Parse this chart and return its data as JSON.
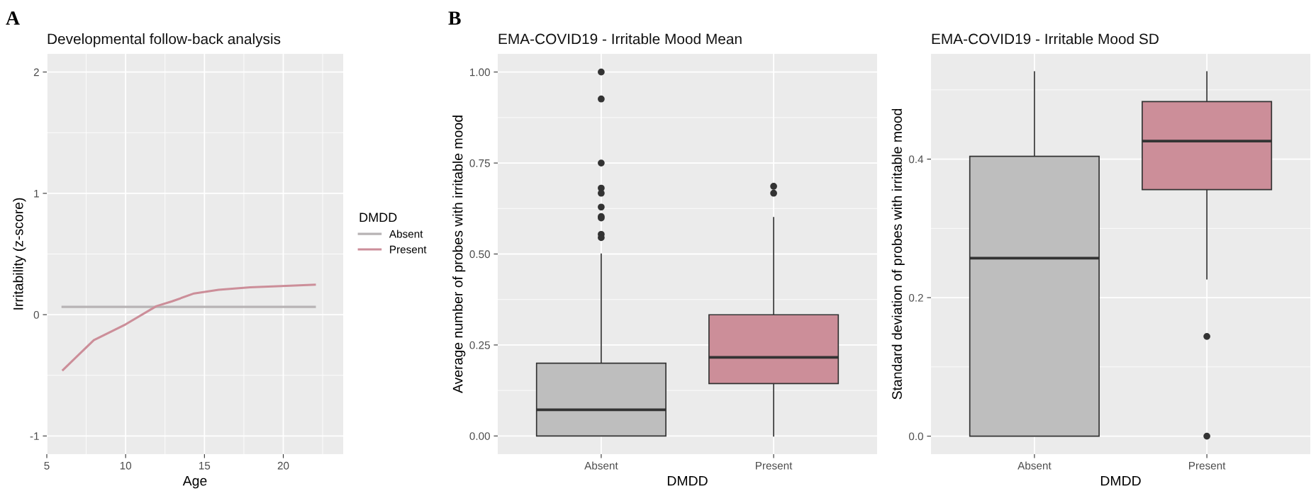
{
  "chart_data": [
    {
      "type": "line",
      "title": "Developmental follow-back analysis",
      "xlabel": "Age",
      "ylabel": "Irritability (z-score)",
      "legend_title": "DMDD",
      "legend": "right",
      "grid": true,
      "marker": "none",
      "line_style": "solid",
      "xlim": [
        5,
        23.8
      ],
      "xticks": [
        5,
        10,
        15,
        20
      ],
      "ylim": [
        -1.15,
        2.15
      ],
      "yticks": [
        -1,
        0,
        1,
        2
      ],
      "annotations": [
        "A"
      ],
      "series": [
        {
          "name": "Absent",
          "color": "#b8b4b5",
          "x": [
            6.0,
            22.0
          ],
          "values": [
            0.064,
            0.064
          ]
        },
        {
          "name": "Present",
          "color": "#cc8e99",
          "x": [
            6.03,
            7.98,
            10.0,
            11.95,
            12.95,
            14.34,
            15.9,
            17.9,
            19.9,
            22.0
          ],
          "values": [
            -0.455,
            -0.21,
            -0.08,
            0.07,
            0.11,
            0.175,
            0.205,
            0.226,
            0.236,
            0.247
          ]
        }
      ]
    },
    {
      "type": "box",
      "title": "EMA-COVID19 - Irritable Mood Mean",
      "xlabel": "DMDD",
      "ylabel": "Average number of probes with irritable mood",
      "grid": true,
      "categories": [
        "Absent",
        "Present"
      ],
      "colors": [
        "#bebebe",
        "#cc8e99"
      ],
      "ylim": [
        -0.05,
        1.05
      ],
      "yticks": [
        {
          "value": 0,
          "label": "0.00"
        },
        0.25,
        {
          "value": 0.5,
          "label": "0.50"
        },
        0.75,
        {
          "value": 1,
          "label": "1.00"
        }
      ],
      "annotations": [
        "B"
      ],
      "boxes": [
        {
          "low": 0,
          "q1": 0,
          "median": 0.072,
          "q3": 0.2,
          "high": 0.5,
          "outliers": [
            1.0,
            0.926,
            0.75,
            0.681,
            0.667,
            0.629,
            0.603,
            0.599,
            0.554,
            0.545
          ]
        },
        {
          "low": 0,
          "q1": 0.144,
          "median": 0.216,
          "q3": 0.333,
          "high": 0.6,
          "outliers": [
            0.686,
            0.667
          ]
        }
      ]
    },
    {
      "type": "box",
      "title": "EMA-COVID19 - Irritable Mood SD",
      "xlabel": "DMDD",
      "ylabel": "Standard deviation of probes with irritable mood",
      "grid": true,
      "categories": [
        "Absent",
        "Present"
      ],
      "colors": [
        "#bebebe",
        "#cc8e99"
      ],
      "ylim": [
        -0.026,
        0.552
      ],
      "yticks": [
        {
          "value": 0,
          "label": "0.0"
        },
        0.2,
        0.4
      ],
      "boxes": [
        {
          "low": 0,
          "q1": 0,
          "median": 0.257,
          "q3": 0.404,
          "high": 0.526
        },
        {
          "low": 0.227,
          "q1": 0.356,
          "median": 0.426,
          "q3": 0.483,
          "high": 0.526,
          "outliers": [
            0.144,
            0.0
          ]
        }
      ]
    }
  ]
}
